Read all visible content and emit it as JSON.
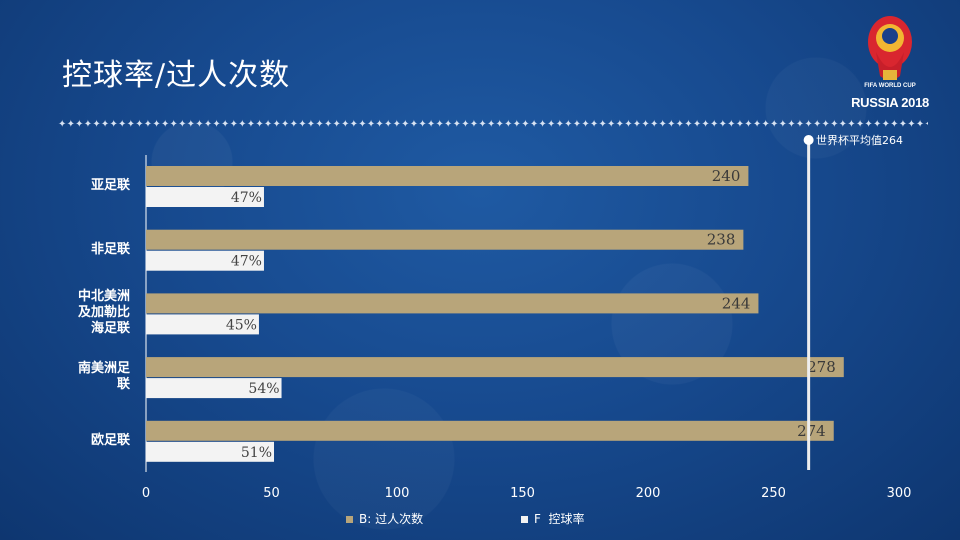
{
  "page": {
    "title": "控球率/过人次数",
    "divider_text": "✦✦✦✦✦✦✦✦✦✦✦✦✦✦✦✦✦✦✦✦✦✦✦✦✦✦✦✦✦✦✦✦✦✦✦✦✦✦✦✦✦✦✦✦✦✦✦✦✦✦✦✦✦✦✦✦✦✦✦✦✦✦✦✦✦✦✦✦✦✦✦✦✦✦✦✦✦✦✦✦✦✦✦✦✦✦✦✦✦✦✦✦✦✦✦✦✦✦✦✦✦✦✦✦✦✦✦✦✦✦✦✦✦✦✦✦✦✦✦✦✦✦✦✦"
  },
  "logo": {
    "line1": "FIFA WORLD CUP",
    "line2": "RUSSIA 2018"
  },
  "chart_data": {
    "type": "bar",
    "orientation": "horizontal",
    "categories": [
      "亚足联",
      "非足联",
      "中北美洲及加勒比海足联",
      "南美洲足联",
      "欧足联"
    ],
    "category_lines": [
      [
        "亚足联"
      ],
      [
        "非足联"
      ],
      [
        "中北美洲",
        "及加勒比",
        "海足联"
      ],
      [
        "南美洲足",
        "联"
      ],
      [
        "欧足联"
      ]
    ],
    "series": [
      {
        "name": "过人次数",
        "values": [
          240,
          238,
          244,
          278,
          274
        ],
        "labels": [
          "240",
          "238",
          "244",
          "278",
          "274"
        ],
        "color": "#b8a57a"
      },
      {
        "name": "控球率",
        "values": [
          47,
          47,
          45,
          54,
          51
        ],
        "labels": [
          "47%",
          "47%",
          "45%",
          "54%",
          "51%"
        ],
        "color": "#f3f3f3"
      }
    ],
    "xlim": [
      0,
      300
    ],
    "xticks": [
      0,
      50,
      100,
      150,
      200,
      250,
      300
    ],
    "reference_line": {
      "value": 264,
      "label": "世界杯平均值264",
      "color": "#eeeeee"
    },
    "legend": {
      "position": "bottom",
      "items": [
        {
          "marker": "B:",
          "text": "过人次数"
        },
        {
          "marker": "F",
          "text": "控球率"
        }
      ]
    },
    "grid": false
  }
}
